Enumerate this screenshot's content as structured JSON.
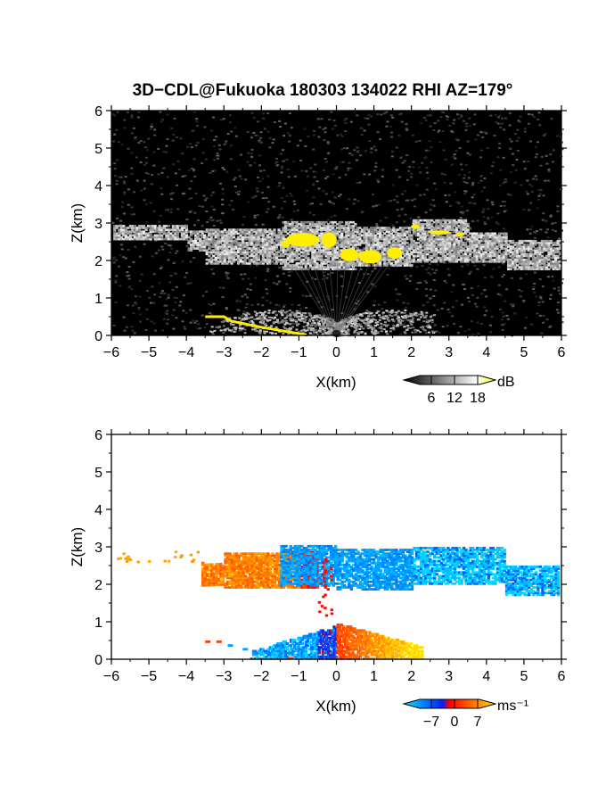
{
  "title": "3D−CDL@Fukuoka 180303 134022 RHI AZ=179°",
  "chart_data": [
    {
      "type": "heatmap",
      "panel": "reflectivity",
      "xlabel": "X(km)",
      "ylabel": "Z(km)",
      "xlim": [
        -6,
        6
      ],
      "ylim": [
        0,
        6
      ],
      "x_ticks": [
        "−6",
        "−5",
        "−4",
        "−3",
        "−2",
        "−1",
        "0",
        "1",
        "2",
        "3",
        "4",
        "5",
        "6"
      ],
      "y_ticks": [
        "0",
        "1",
        "2",
        "3",
        "4",
        "5",
        "6"
      ],
      "colorbar": {
        "unit": "dB",
        "ticks": [
          "6",
          "12",
          "18"
        ],
        "colors": [
          "#000000",
          "#ffffff",
          "#ffff00"
        ]
      },
      "background": "#000000",
      "features": [
        {
          "name": "cloud-layer",
          "x": [
            -6,
            6
          ],
          "z": [
            1.7,
            3.1
          ],
          "level": "12–18"
        },
        {
          "name": "strong-echo",
          "x": [
            -1.7,
            3.5
          ],
          "z": [
            1.9,
            3.0
          ],
          "level": ">18"
        },
        {
          "name": "near-ground-fan",
          "x": [
            -3.5,
            2.5
          ],
          "z": [
            0,
            1.0
          ],
          "level": "6–12"
        }
      ]
    },
    {
      "type": "heatmap",
      "panel": "velocity",
      "xlabel": "X(km)",
      "ylabel": "Z(km)",
      "xlim": [
        -6,
        6
      ],
      "ylim": [
        0,
        6
      ],
      "x_ticks": [
        "−6",
        "−5",
        "−4",
        "−3",
        "−2",
        "−1",
        "0",
        "1",
        "2",
        "3",
        "4",
        "5",
        "6"
      ],
      "y_ticks": [
        "0",
        "1",
        "2",
        "3",
        "4",
        "5",
        "6"
      ],
      "colorbar": {
        "unit": "ms⁻¹",
        "ticks": [
          "−7",
          "0",
          "7"
        ],
        "colors": [
          "#00e0ff",
          "#0030ff",
          "#ff0000",
          "#ffe000"
        ]
      },
      "features": [
        {
          "name": "receding-upper-left",
          "x": [
            -3.6,
            -0.5
          ],
          "z": [
            1.9,
            2.9
          ],
          "velocity_ms": 5
        },
        {
          "name": "approaching-upper-right",
          "x": [
            -1.5,
            5.9
          ],
          "z": [
            1.7,
            3.1
          ],
          "velocity_ms": -6
        },
        {
          "name": "low-left-approaching",
          "x": [
            -2.3,
            0
          ],
          "z": [
            0,
            1.0
          ],
          "velocity_ms": -5
        },
        {
          "name": "low-right-receding",
          "x": [
            0,
            2.2
          ],
          "z": [
            0,
            1.0
          ],
          "velocity_ms": 6
        }
      ]
    }
  ]
}
